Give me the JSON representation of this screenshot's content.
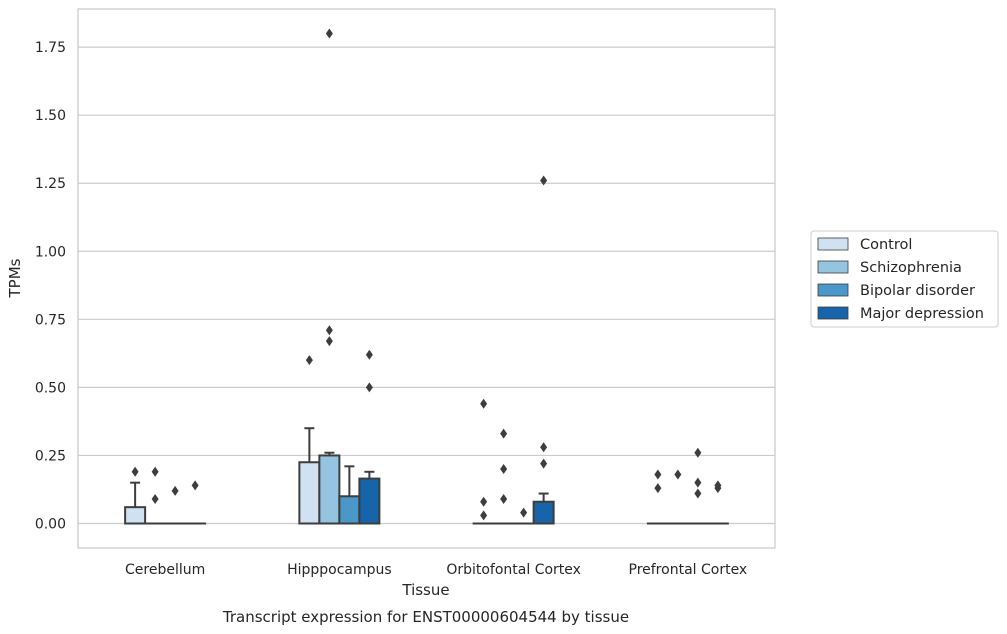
{
  "caption": "Transcript expression for ENST00000604544 by tissue",
  "chart_data": {
    "type": "box",
    "xlabel": "Tissue",
    "ylabel": "TPMs",
    "ylim": [
      -0.09,
      1.89
    ],
    "yticks": [
      "0.00",
      "0.25",
      "0.50",
      "0.75",
      "1.00",
      "1.25",
      "1.50",
      "1.75"
    ],
    "categories": [
      "Cerebellum",
      "Hipppocampus",
      "Orbitofontal Cortex",
      "Prefrontal Cortex"
    ],
    "grid": "horizontal",
    "legend_position": "right",
    "series": [
      {
        "name": "Control",
        "color": "#d0e1f2",
        "boxes": [
          {
            "q1": 0.0,
            "median": 0.0,
            "q3": 0.06,
            "whislo": 0.0,
            "whishi": 0.15,
            "fliers": [
              0.19
            ]
          },
          {
            "q1": 0.0,
            "median": 0.0,
            "q3": 0.225,
            "whislo": 0.0,
            "whishi": 0.35,
            "fliers": [
              0.6
            ]
          },
          {
            "q1": 0.0,
            "median": 0.0,
            "q3": 0.0,
            "whislo": 0.0,
            "whishi": 0.0,
            "fliers": [
              0.03,
              0.08,
              0.44
            ]
          },
          {
            "q1": 0.0,
            "median": 0.0,
            "q3": 0.0,
            "whislo": 0.0,
            "whishi": 0.0,
            "fliers": [
              0.13,
              0.18
            ]
          }
        ]
      },
      {
        "name": "Schizophrenia",
        "color": "#94c4df",
        "boxes": [
          {
            "q1": 0.0,
            "median": 0.0,
            "q3": 0.0,
            "whislo": 0.0,
            "whishi": 0.0,
            "fliers": [
              0.09,
              0.19
            ]
          },
          {
            "q1": 0.0,
            "median": 0.0,
            "q3": 0.25,
            "whislo": 0.0,
            "whishi": 0.26,
            "fliers": [
              0.67,
              0.71,
              1.8
            ]
          },
          {
            "q1": 0.0,
            "median": 0.0,
            "q3": 0.0,
            "whislo": 0.0,
            "whishi": 0.0,
            "fliers": [
              0.09,
              0.2,
              0.33
            ]
          },
          {
            "q1": 0.0,
            "median": 0.0,
            "q3": 0.0,
            "whislo": 0.0,
            "whishi": 0.0,
            "fliers": [
              0.18
            ]
          }
        ]
      },
      {
        "name": "Bipolar disorder",
        "color": "#4a98c9",
        "boxes": [
          {
            "q1": 0.0,
            "median": 0.0,
            "q3": 0.0,
            "whislo": 0.0,
            "whishi": 0.0,
            "fliers": [
              0.12
            ]
          },
          {
            "q1": 0.0,
            "median": 0.0,
            "q3": 0.1,
            "whislo": 0.0,
            "whishi": 0.21,
            "fliers": []
          },
          {
            "q1": 0.0,
            "median": 0.0,
            "q3": 0.0,
            "whislo": 0.0,
            "whishi": 0.0,
            "fliers": [
              0.04
            ]
          },
          {
            "q1": 0.0,
            "median": 0.0,
            "q3": 0.0,
            "whislo": 0.0,
            "whishi": 0.0,
            "fliers": [
              0.11,
              0.15,
              0.26
            ]
          }
        ]
      },
      {
        "name": "Major depression",
        "color": "#1764ab",
        "boxes": [
          {
            "q1": 0.0,
            "median": 0.0,
            "q3": 0.0,
            "whislo": 0.0,
            "whishi": 0.0,
            "fliers": [
              0.14
            ]
          },
          {
            "q1": 0.0,
            "median": 0.0,
            "q3": 0.165,
            "whislo": 0.0,
            "whishi": 0.19,
            "fliers": [
              0.5,
              0.62
            ]
          },
          {
            "q1": 0.0,
            "median": 0.0,
            "q3": 0.08,
            "whislo": 0.0,
            "whishi": 0.11,
            "fliers": [
              0.22,
              0.28,
              1.26
            ]
          },
          {
            "q1": 0.0,
            "median": 0.0,
            "q3": 0.0,
            "whislo": 0.0,
            "whishi": 0.0,
            "fliers": [
              0.13,
              0.14
            ]
          }
        ]
      }
    ]
  }
}
